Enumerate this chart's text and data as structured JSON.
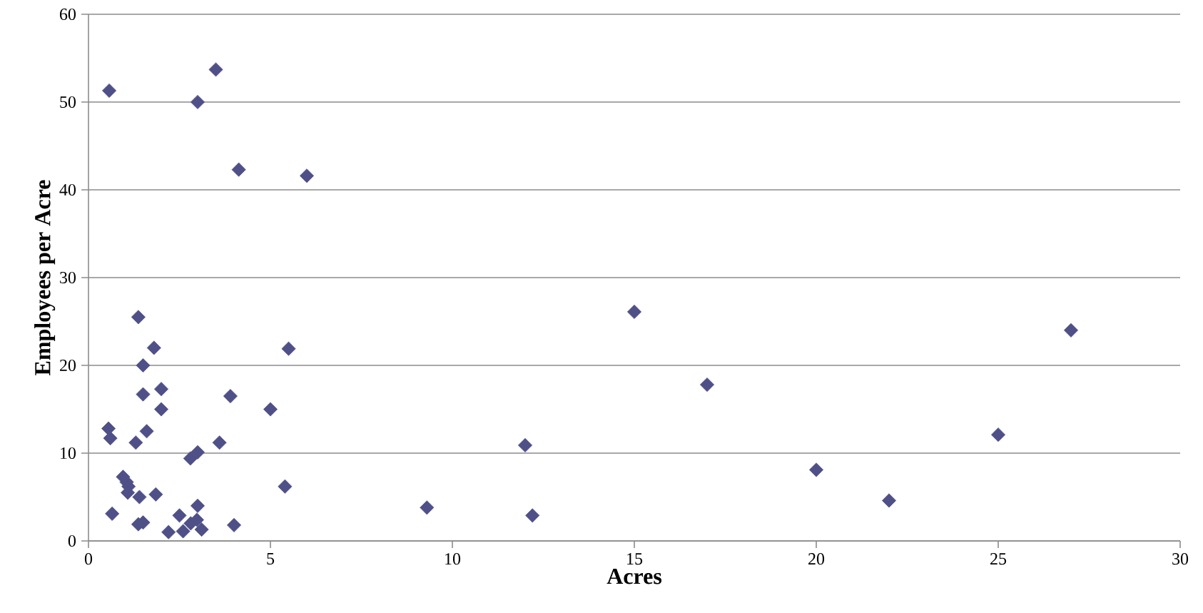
{
  "chart_data": {
    "type": "scatter",
    "xlabel": "Acres",
    "ylabel": "Employees per Acre",
    "x": [
      0.57,
      3.0,
      3.5,
      4.13,
      6.0,
      1.37,
      1.8,
      1.5,
      1.5,
      2.0,
      2.0,
      1.6,
      0.55,
      0.6,
      1.3,
      3.9,
      3.6,
      5.0,
      5.5,
      2.8,
      3.0,
      0.95,
      1.05,
      1.1,
      1.08,
      1.4,
      1.85,
      0.65,
      1.37,
      1.5,
      2.2,
      2.5,
      2.6,
      3.0,
      2.81,
      2.98,
      3.11,
      4.0,
      5.4,
      9.3,
      12.0,
      12.2,
      15.0,
      17.0,
      20.0,
      22.0,
      25.0,
      27.0
    ],
    "values": [
      51.3,
      50.0,
      53.7,
      42.3,
      41.6,
      25.5,
      22.0,
      20.0,
      16.7,
      17.3,
      15.0,
      12.5,
      12.8,
      11.7,
      11.2,
      16.5,
      11.2,
      15.0,
      21.9,
      9.4,
      10.1,
      7.3,
      6.7,
      6.2,
      5.5,
      5.0,
      5.3,
      3.1,
      1.9,
      2.1,
      1.0,
      2.9,
      1.1,
      4.0,
      2.0,
      2.4,
      1.3,
      1.8,
      6.2,
      3.8,
      10.9,
      2.9,
      26.1,
      17.8,
      8.1,
      4.6,
      12.1,
      24.0
    ],
    "color": "#505088",
    "marker": "diamond",
    "grid": "y",
    "xlim": [
      0,
      30
    ],
    "ylim": [
      0,
      60
    ],
    "xticks": [
      0,
      5,
      10,
      15,
      20,
      25,
      30
    ],
    "yticks": [
      0,
      10,
      20,
      30,
      40,
      50,
      60
    ]
  }
}
